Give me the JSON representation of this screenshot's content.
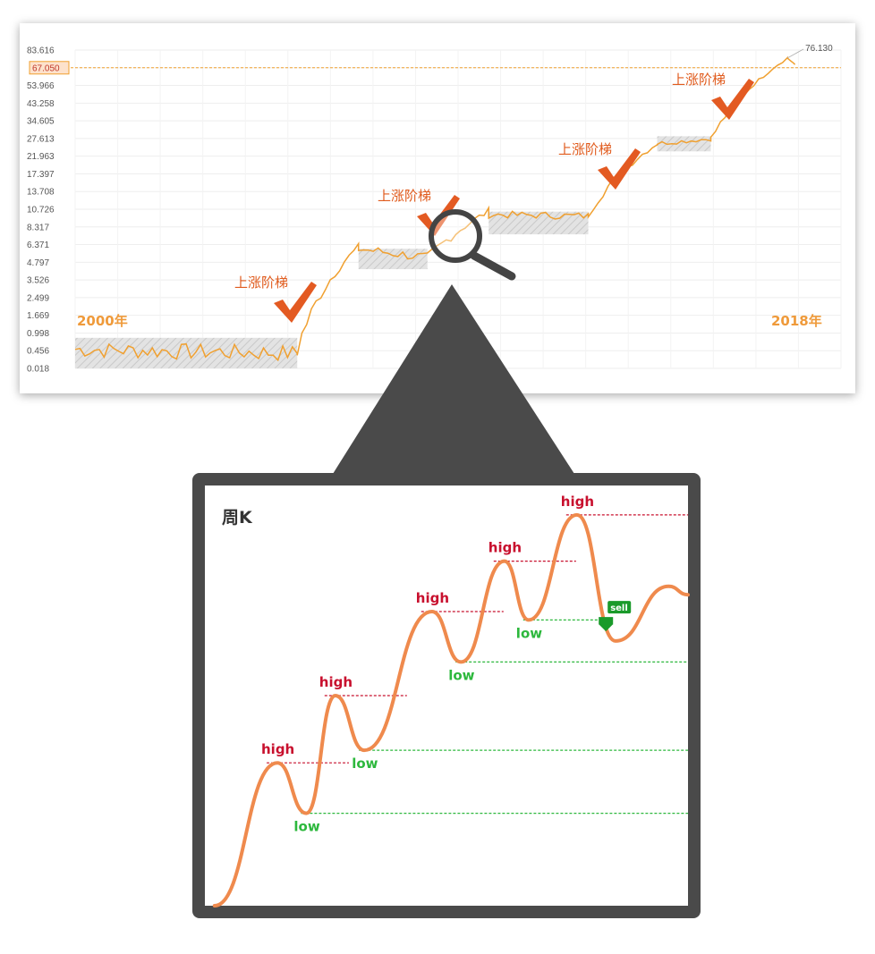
{
  "chart_data": [
    {
      "type": "line",
      "title": "",
      "y_scale": "log",
      "y_ticks": [
        "0.018",
        "0.456",
        "0.998",
        "1.669",
        "2.499",
        "3.526",
        "4.797",
        "6.371",
        "8.317",
        "10.726",
        "13.708",
        "17.397",
        "21.963",
        "27.613",
        "34.605",
        "43.258",
        "53.966",
        "67.050",
        "83.616"
      ],
      "highlight_value_label": "67.050",
      "end_value_label": "76.130",
      "start_label": "2000年",
      "end_label": "2018年",
      "ladder_label": "上涨阶梯",
      "ladder_count": 4,
      "consolidation_ranges": [
        {
          "from": 0.0,
          "to": 0.29,
          "low": 0.018,
          "high": 0.85
        },
        {
          "from": 0.37,
          "to": 0.46,
          "low": 4.3,
          "high": 6.0
        },
        {
          "from": 0.54,
          "to": 0.67,
          "low": 7.5,
          "high": 10.4
        },
        {
          "from": 0.76,
          "to": 0.83,
          "low": 23.5,
          "high": 28.5
        }
      ],
      "colors": {
        "line": "#f0a030",
        "accent": "#e05b1d",
        "reference": "#f0a030"
      }
    },
    {
      "type": "line",
      "title": "周K",
      "labels": {
        "high": "high",
        "low": "low",
        "sell": "sell"
      },
      "colors": {
        "curve": "#ef8a4d",
        "high": "#c8102e",
        "low": "#2db83d",
        "sell": "#1a9a2a"
      },
      "swing_highs": [
        {
          "label": "high",
          "x": 0.15,
          "y": 0.34
        },
        {
          "label": "high",
          "x": 0.27,
          "y": 0.5
        },
        {
          "label": "high",
          "x": 0.47,
          "y": 0.7
        },
        {
          "label": "high",
          "x": 0.62,
          "y": 0.82
        },
        {
          "label": "high",
          "x": 0.77,
          "y": 0.93
        }
      ],
      "swing_lows": [
        {
          "label": "low",
          "x": 0.21,
          "y": 0.22
        },
        {
          "label": "low",
          "x": 0.33,
          "y": 0.37
        },
        {
          "label": "low",
          "x": 0.53,
          "y": 0.58
        },
        {
          "label": "low",
          "x": 0.67,
          "y": 0.68
        }
      ],
      "sell_point": {
        "label": "sell",
        "x": 0.83,
        "y": 0.67
      }
    }
  ]
}
